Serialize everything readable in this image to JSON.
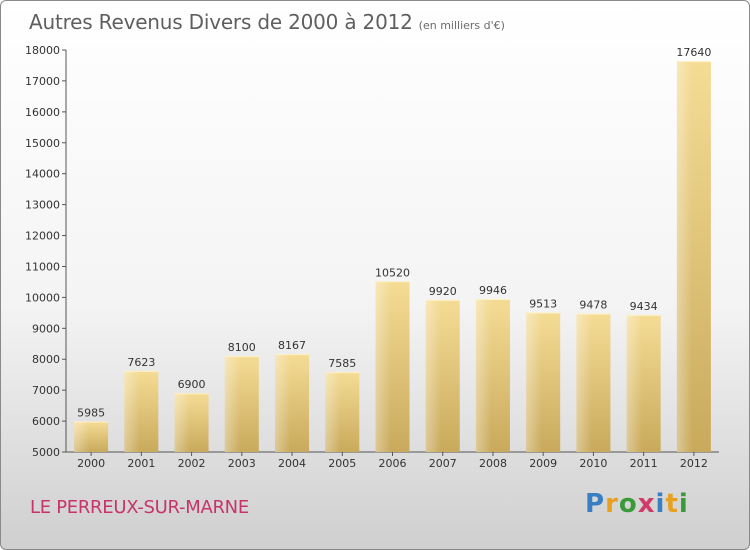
{
  "chart_data": {
    "type": "bar",
    "title": "Autres Revenus Divers de 2000 à 2012",
    "subtitle": "(en milliers d'€)",
    "categories": [
      "2000",
      "2001",
      "2002",
      "2003",
      "2004",
      "2005",
      "2006",
      "2007",
      "2008",
      "2009",
      "2010",
      "2011",
      "2012"
    ],
    "values": [
      5985,
      7623,
      6900,
      8100,
      8167,
      7585,
      10520,
      9920,
      9946,
      9513,
      9478,
      9434,
      17640
    ],
    "ylim": [
      5000,
      18000
    ],
    "yticks": [
      5000,
      6000,
      7000,
      8000,
      9000,
      10000,
      11000,
      12000,
      13000,
      14000,
      15000,
      16000,
      17000,
      18000
    ],
    "xlabel": "",
    "ylabel": "",
    "grid": false,
    "bar_color": "#e6c97c"
  },
  "footer": {
    "town": "LE PERREUX-SUR-MARNE",
    "logo": [
      "P",
      "r",
      "o",
      "x",
      "i",
      "t",
      "i"
    ],
    "logo_colors": [
      "#3a7fc4",
      "#e8a020",
      "#3a9a3a",
      "#d23a6a",
      "#3a7fc4",
      "#e8a020",
      "#3a9a3a"
    ]
  }
}
